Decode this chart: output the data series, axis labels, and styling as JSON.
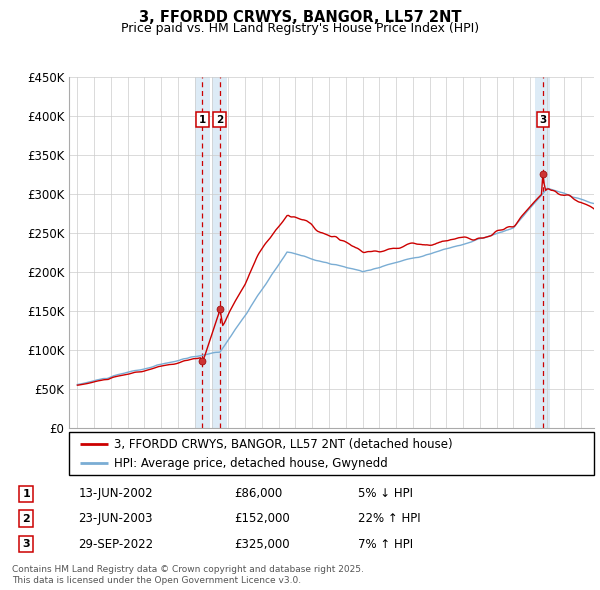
{
  "title": "3, FFORDD CRWYS, BANGOR, LL57 2NT",
  "subtitle": "Price paid vs. HM Land Registry's House Price Index (HPI)",
  "legend_line1": "3, FFORDD CRWYS, BANGOR, LL57 2NT (detached house)",
  "legend_line2": "HPI: Average price, detached house, Gwynedd",
  "footer": "Contains HM Land Registry data © Crown copyright and database right 2025.\nThis data is licensed under the Open Government Licence v3.0.",
  "sales": [
    {
      "num": 1,
      "date": "13-JUN-2002",
      "price": 86000,
      "pct": "5%",
      "dir": "↓",
      "year": 2002.45
    },
    {
      "num": 2,
      "date": "23-JUN-2003",
      "price": 152000,
      "pct": "22%",
      "dir": "↑",
      "year": 2003.48
    },
    {
      "num": 3,
      "date": "29-SEP-2022",
      "price": 325000,
      "pct": "7%",
      "dir": "↑",
      "year": 2022.75
    }
  ],
  "ylim": [
    0,
    450000
  ],
  "yticks": [
    0,
    50000,
    100000,
    150000,
    200000,
    250000,
    300000,
    350000,
    400000,
    450000
  ],
  "ytick_labels": [
    "£0",
    "£50K",
    "£100K",
    "£150K",
    "£200K",
    "£250K",
    "£300K",
    "£350K",
    "£400K",
    "£450K"
  ],
  "xlim_start": 1994.5,
  "xlim_end": 2025.8,
  "price_line_color": "#cc0000",
  "hpi_line_color": "#7aadd4",
  "marker_box_color": "#cc0000",
  "dashed_line_color": "#cc0000",
  "shade_color": "#d8e8f5",
  "background_color": "#ffffff",
  "grid_color": "#cccccc"
}
